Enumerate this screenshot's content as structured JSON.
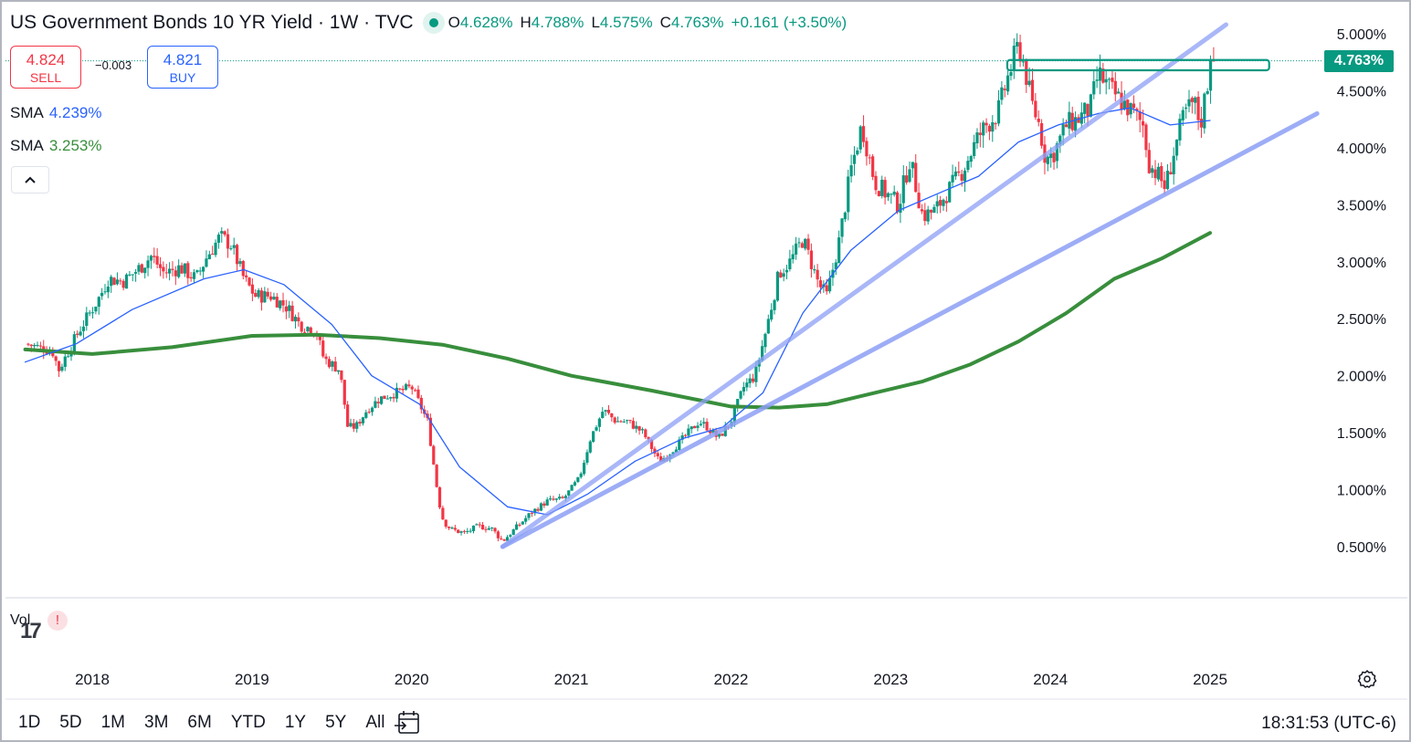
{
  "header": {
    "title": "US Government Bonds 10 YR Yield · 1W · TVC",
    "ohlc": [
      {
        "key": "O",
        "value": "4.628%"
      },
      {
        "key": "H",
        "value": "4.788%"
      },
      {
        "key": "L",
        "value": "4.575%"
      },
      {
        "key": "C",
        "value": "4.763%"
      }
    ],
    "change": "+0.161 (+3.50%)"
  },
  "trade": {
    "sell_price": "4.824",
    "sell_label": "SELL",
    "spread": "−0.003",
    "buy_price": "4.821",
    "buy_label": "BUY"
  },
  "indicators": [
    {
      "name": "SMA",
      "value": "4.239%",
      "color": "#2962ff"
    },
    {
      "name": "SMA",
      "value": "3.253%",
      "color": "#388e3c"
    }
  ],
  "collapse_glyph": "^",
  "volume": {
    "label": "Vol",
    "warning": "!"
  },
  "last_price_tag": "4.763%",
  "colors": {
    "up": "#089981",
    "down": "#f23645",
    "sma_fast": "#2962ff",
    "sma_slow": "#388e3c",
    "trendline": "#8c9ff5",
    "rect": "#089981"
  },
  "bottom_bar": {
    "ranges": [
      "1D",
      "5D",
      "1M",
      "3M",
      "6M",
      "YTD",
      "1Y",
      "5Y",
      "All"
    ],
    "clock": "18:31:53 (UTC-6)"
  },
  "icons": [
    "live-dot-icon",
    "chevron-up-icon",
    "calendar-goto-icon",
    "gear-icon",
    "tradingview-logo-icon"
  ],
  "chart_data": {
    "type": "candlestick",
    "title": "US Government Bonds 10 YR Yield",
    "timeframe": "1W",
    "source": "TVC",
    "x_ticks": [
      "2018",
      "2019",
      "2020",
      "2021",
      "2022",
      "2023",
      "2024",
      "2025"
    ],
    "y_ticks": [
      "0.500%",
      "1.000%",
      "1.500%",
      "2.000%",
      "2.500%",
      "3.000%",
      "3.500%",
      "4.000%",
      "4.500%",
      "5.000%"
    ],
    "y_range": [
      0.2,
      5.25
    ],
    "x_range": [
      2017.58,
      2026.09
    ],
    "price_path": [
      [
        2017.58,
        2.28
      ],
      [
        2017.75,
        2.22
      ],
      [
        2017.79,
        2.05
      ],
      [
        2017.92,
        2.4
      ],
      [
        2018.05,
        2.7
      ],
      [
        2018.1,
        2.85
      ],
      [
        2018.2,
        2.83
      ],
      [
        2018.3,
        2.95
      ],
      [
        2018.37,
        3.05
      ],
      [
        2018.45,
        2.9
      ],
      [
        2018.55,
        2.95
      ],
      [
        2018.65,
        2.85
      ],
      [
        2018.72,
        3.05
      ],
      [
        2018.8,
        3.22
      ],
      [
        2018.87,
        3.15
      ],
      [
        2018.95,
        2.85
      ],
      [
        2019.02,
        2.7
      ],
      [
        2019.12,
        2.7
      ],
      [
        2019.22,
        2.6
      ],
      [
        2019.3,
        2.45
      ],
      [
        2019.4,
        2.4
      ],
      [
        2019.45,
        2.15
      ],
      [
        2019.55,
        2.05
      ],
      [
        2019.6,
        1.55
      ],
      [
        2019.65,
        1.55
      ],
      [
        2019.72,
        1.7
      ],
      [
        2019.8,
        1.8
      ],
      [
        2019.9,
        1.85
      ],
      [
        2020.0,
        1.9
      ],
      [
        2020.1,
        1.6
      ],
      [
        2020.17,
        0.9
      ],
      [
        2020.2,
        0.72
      ],
      [
        2020.25,
        0.65
      ],
      [
        2020.33,
        0.62
      ],
      [
        2020.42,
        0.68
      ],
      [
        2020.5,
        0.66
      ],
      [
        2020.57,
        0.55
      ],
      [
        2020.65,
        0.66
      ],
      [
        2020.75,
        0.8
      ],
      [
        2020.85,
        0.9
      ],
      [
        2020.95,
        0.92
      ],
      [
        2021.05,
        1.1
      ],
      [
        2021.12,
        1.45
      ],
      [
        2021.2,
        1.7
      ],
      [
        2021.28,
        1.6
      ],
      [
        2021.35,
        1.6
      ],
      [
        2021.45,
        1.5
      ],
      [
        2021.55,
        1.25
      ],
      [
        2021.6,
        1.3
      ],
      [
        2021.7,
        1.45
      ],
      [
        2021.8,
        1.6
      ],
      [
        2021.85,
        1.55
      ],
      [
        2021.92,
        1.45
      ],
      [
        2022.0,
        1.6
      ],
      [
        2022.08,
        1.9
      ],
      [
        2022.15,
        2.0
      ],
      [
        2022.22,
        2.4
      ],
      [
        2022.3,
        2.9
      ],
      [
        2022.37,
        3.0
      ],
      [
        2022.45,
        3.2
      ],
      [
        2022.55,
        2.8
      ],
      [
        2022.6,
        2.7
      ],
      [
        2022.68,
        3.2
      ],
      [
        2022.75,
        3.8
      ],
      [
        2022.82,
        4.2
      ],
      [
        2022.9,
        3.7
      ],
      [
        2022.97,
        3.6
      ],
      [
        2023.05,
        3.5
      ],
      [
        2023.12,
        3.9
      ],
      [
        2023.2,
        3.4
      ],
      [
        2023.28,
        3.45
      ],
      [
        2023.35,
        3.6
      ],
      [
        2023.45,
        3.8
      ],
      [
        2023.55,
        4.1
      ],
      [
        2023.6,
        4.2
      ],
      [
        2023.67,
        4.3
      ],
      [
        2023.73,
        4.6
      ],
      [
        2023.8,
        4.9
      ],
      [
        2023.84,
        4.7
      ],
      [
        2023.88,
        4.4
      ],
      [
        2023.93,
        4.2
      ],
      [
        2023.97,
        3.9
      ],
      [
        2024.02,
        3.95
      ],
      [
        2024.1,
        4.2
      ],
      [
        2024.17,
        4.25
      ],
      [
        2024.25,
        4.35
      ],
      [
        2024.3,
        4.65
      ],
      [
        2024.38,
        4.5
      ],
      [
        2024.45,
        4.4
      ],
      [
        2024.52,
        4.3
      ],
      [
        2024.58,
        4.2
      ],
      [
        2024.62,
        3.85
      ],
      [
        2024.68,
        3.75
      ],
      [
        2024.72,
        3.65
      ],
      [
        2024.78,
        4.0
      ],
      [
        2024.84,
        4.3
      ],
      [
        2024.9,
        4.4
      ],
      [
        2024.94,
        4.2
      ],
      [
        2024.98,
        4.55
      ],
      [
        2025.02,
        4.763
      ]
    ],
    "sma_fast": {
      "name": "SMA",
      "value": "4.239%",
      "points": [
        [
          2017.58,
          2.12
        ],
        [
          2017.9,
          2.28
        ],
        [
          2018.25,
          2.58
        ],
        [
          2018.7,
          2.85
        ],
        [
          2018.95,
          2.93
        ],
        [
          2019.2,
          2.8
        ],
        [
          2019.5,
          2.45
        ],
        [
          2019.75,
          2.0
        ],
        [
          2020.05,
          1.75
        ],
        [
          2020.3,
          1.2
        ],
        [
          2020.6,
          0.85
        ],
        [
          2020.85,
          0.78
        ],
        [
          2021.1,
          0.96
        ],
        [
          2021.4,
          1.25
        ],
        [
          2021.7,
          1.45
        ],
        [
          2021.95,
          1.55
        ],
        [
          2022.2,
          1.85
        ],
        [
          2022.45,
          2.55
        ],
        [
          2022.75,
          3.1
        ],
        [
          2023.05,
          3.45
        ],
        [
          2023.3,
          3.6
        ],
        [
          2023.55,
          3.75
        ],
        [
          2023.8,
          4.05
        ],
        [
          2024.05,
          4.2
        ],
        [
          2024.3,
          4.3
        ],
        [
          2024.5,
          4.35
        ],
        [
          2024.75,
          4.2
        ],
        [
          2025.0,
          4.239
        ]
      ]
    },
    "sma_slow": {
      "name": "SMA",
      "value": "3.253%",
      "points": [
        [
          2017.58,
          2.23
        ],
        [
          2018.0,
          2.19
        ],
        [
          2018.5,
          2.25
        ],
        [
          2019.0,
          2.35
        ],
        [
          2019.4,
          2.36
        ],
        [
          2019.8,
          2.33
        ],
        [
          2020.2,
          2.27
        ],
        [
          2020.6,
          2.15
        ],
        [
          2021.0,
          2.0
        ],
        [
          2021.5,
          1.87
        ],
        [
          2022.0,
          1.73
        ],
        [
          2022.3,
          1.72
        ],
        [
          2022.6,
          1.75
        ],
        [
          2022.9,
          1.85
        ],
        [
          2023.2,
          1.95
        ],
        [
          2023.5,
          2.1
        ],
        [
          2023.8,
          2.3
        ],
        [
          2024.1,
          2.55
        ],
        [
          2024.4,
          2.85
        ],
        [
          2024.7,
          3.03
        ],
        [
          2025.0,
          3.253
        ]
      ]
    },
    "trendlines": [
      {
        "from": [
          2020.57,
          0.5
        ],
        "to": [
          2025.1,
          5.08
        ]
      },
      {
        "from": [
          2020.57,
          0.5
        ],
        "to": [
          2025.67,
          4.3
        ]
      }
    ],
    "resistance_box": {
      "x": [
        2023.73,
        2025.37
      ],
      "y": [
        4.68,
        4.77
      ]
    },
    "last_price": 4.763,
    "volume_label": "Vol",
    "ohlc_last": {
      "open": 4.628,
      "high": 4.788,
      "low": 4.575,
      "close": 4.763,
      "change": 0.161,
      "change_pct": 3.5
    }
  }
}
